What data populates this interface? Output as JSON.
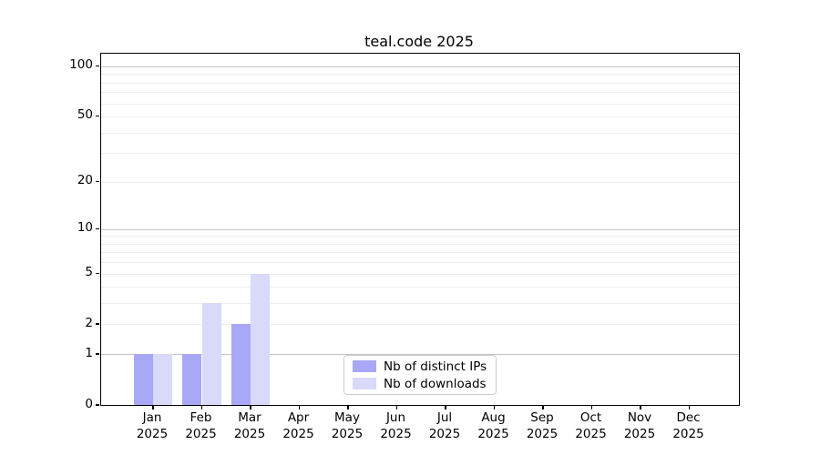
{
  "title": "teal.code 2025",
  "chart_data": {
    "type": "bar",
    "title": "teal.code 2025",
    "categories": [
      "Jan 2025",
      "Feb 2025",
      "Mar 2025",
      "Apr 2025",
      "May 2025",
      "Jun 2025",
      "Jul 2025",
      "Aug 2025",
      "Sep 2025",
      "Oct 2025",
      "Nov 2025",
      "Dec 2025"
    ],
    "series": [
      {
        "name": "Nb of distinct IPs",
        "color": "#a8a8f6",
        "values": [
          1,
          1,
          2,
          0,
          0,
          0,
          0,
          0,
          0,
          0,
          0,
          0
        ]
      },
      {
        "name": "Nb of downloads",
        "color": "#d9d9fa",
        "values": [
          1,
          3,
          5,
          0,
          0,
          0,
          0,
          0,
          0,
          0,
          0,
          0
        ]
      }
    ],
    "xlabel": "",
    "ylabel": "",
    "yscale": "log1p",
    "ylim": [
      0,
      119
    ],
    "y_tick_values": [
      0,
      1,
      2,
      5,
      10,
      20,
      50,
      100
    ],
    "y_tick_labels": [
      "0",
      "1",
      "2",
      "5",
      "10",
      "20",
      "50",
      "100"
    ],
    "grid_major_values": [
      1,
      10,
      100
    ],
    "grid_minor_values": [
      2,
      3,
      4,
      5,
      6,
      7,
      8,
      9,
      20,
      30,
      40,
      50,
      60,
      70,
      80,
      90
    ],
    "grid": "on",
    "legend_position": "lower center (inside axes)",
    "colors": {
      "grid_major": "#c4c4c4",
      "grid_minor": "#efefef",
      "spine": "#000000",
      "text": "#000000",
      "background": "#ffffff"
    }
  }
}
